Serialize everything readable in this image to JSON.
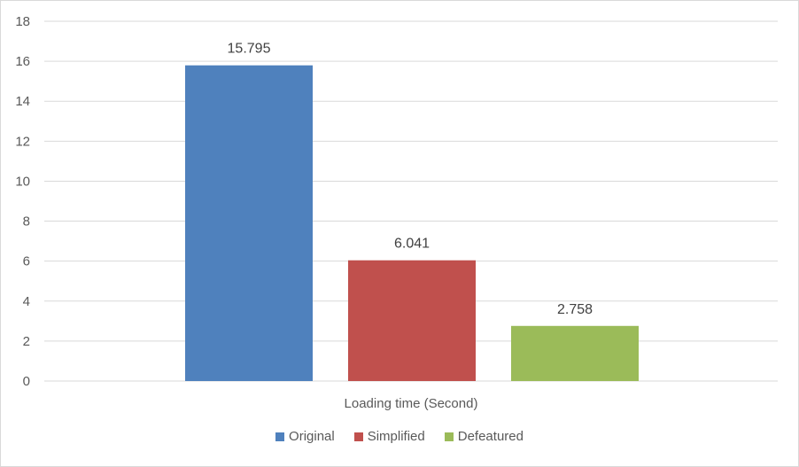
{
  "chart_data": {
    "type": "bar",
    "categories": [
      "Loading time (Second)"
    ],
    "series": [
      {
        "name": "Original",
        "values": [
          15.795
        ],
        "color": "#4f81bd",
        "label": "15.795"
      },
      {
        "name": "Simplified",
        "values": [
          6.041
        ],
        "color": "#c0504d",
        "label": "6.041"
      },
      {
        "name": "Defeatured",
        "values": [
          2.758
        ],
        "color": "#9bbb59",
        "label": "2.758"
      }
    ],
    "title": "",
    "xlabel": "",
    "ylabel": "",
    "ylim": [
      0,
      18
    ],
    "yticks": [
      "0",
      "2",
      "4",
      "6",
      "8",
      "10",
      "12",
      "14",
      "16",
      "18"
    ],
    "grid": true,
    "legend_position": "bottom"
  }
}
